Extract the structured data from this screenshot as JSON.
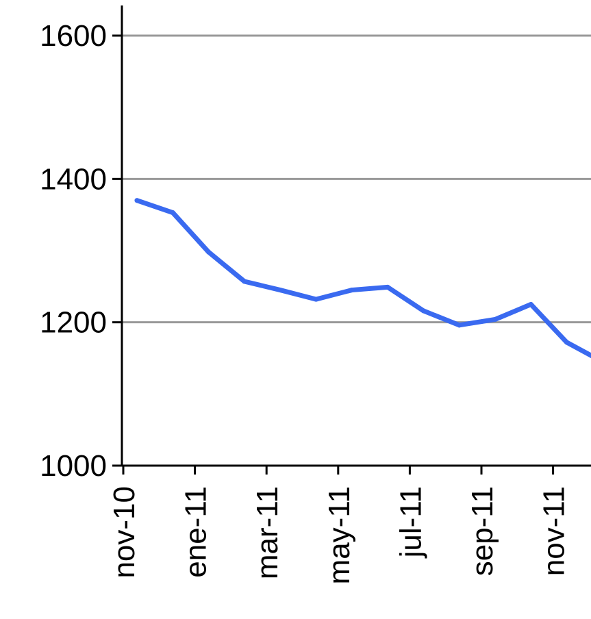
{
  "chart_data": {
    "type": "line",
    "title": "",
    "xlabel": "",
    "ylabel": "",
    "ylim": [
      1000,
      1600
    ],
    "yticks": [
      1000,
      1200,
      1400,
      1600
    ],
    "grid": true,
    "x_tick_labels": [
      "nov-10",
      "ene-11",
      "mar-11",
      "may-11",
      "jul-11",
      "sep-11",
      "nov-11"
    ],
    "x": [
      "nov-10",
      "dic-10",
      "ene-11",
      "feb-11",
      "mar-11",
      "abr-11",
      "may-11",
      "jun-11",
      "jul-11",
      "ago-11",
      "sep-11",
      "oct-11",
      "nov-11",
      "dic-11"
    ],
    "series": [
      {
        "values": [
          1370,
          1353,
          1298,
          1257,
          1245,
          1232,
          1245,
          1249,
          1216,
          1196,
          1204,
          1225,
          1172,
          1145
        ]
      }
    ],
    "colors": {
      "line": "#3a6af0",
      "grid": "#999999",
      "axis": "#000000"
    }
  }
}
